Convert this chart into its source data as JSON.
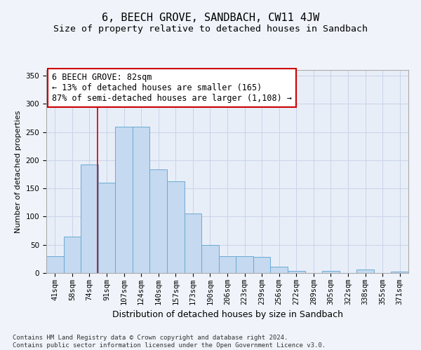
{
  "title": "6, BEECH GROVE, SANDBACH, CW11 4JW",
  "subtitle": "Size of property relative to detached houses in Sandbach",
  "xlabel": "Distribution of detached houses by size in Sandbach",
  "ylabel": "Number of detached properties",
  "categories": [
    "41sqm",
    "58sqm",
    "74sqm",
    "91sqm",
    "107sqm",
    "124sqm",
    "140sqm",
    "157sqm",
    "173sqm",
    "190sqm",
    "206sqm",
    "223sqm",
    "239sqm",
    "256sqm",
    "272sqm",
    "289sqm",
    "305sqm",
    "322sqm",
    "338sqm",
    "355sqm",
    "371sqm"
  ],
  "values": [
    30,
    65,
    192,
    160,
    260,
    260,
    184,
    163,
    105,
    50,
    30,
    30,
    28,
    11,
    4,
    0,
    4,
    0,
    6,
    0,
    2
  ],
  "bar_color": "#c5d9f0",
  "bar_edge_color": "#6aaad4",
  "background_color": "#e8eef8",
  "grid_color": "#d0d8e8",
  "annotation_text": "6 BEECH GROVE: 82sqm\n← 13% of detached houses are smaller (165)\n87% of semi-detached houses are larger (1,108) →",
  "annotation_box_color": "#ffffff",
  "annotation_box_edge_color": "#cc0000",
  "marker_line_color": "#cc0000",
  "ylim": [
    0,
    360
  ],
  "yticks": [
    0,
    50,
    100,
    150,
    200,
    250,
    300,
    350
  ],
  "footnote": "Contains HM Land Registry data © Crown copyright and database right 2024.\nContains public sector information licensed under the Open Government Licence v3.0.",
  "title_fontsize": 11,
  "subtitle_fontsize": 9.5,
  "xlabel_fontsize": 9,
  "ylabel_fontsize": 8,
  "tick_fontsize": 7.5,
  "annotation_fontsize": 8.5,
  "footnote_fontsize": 6.5
}
